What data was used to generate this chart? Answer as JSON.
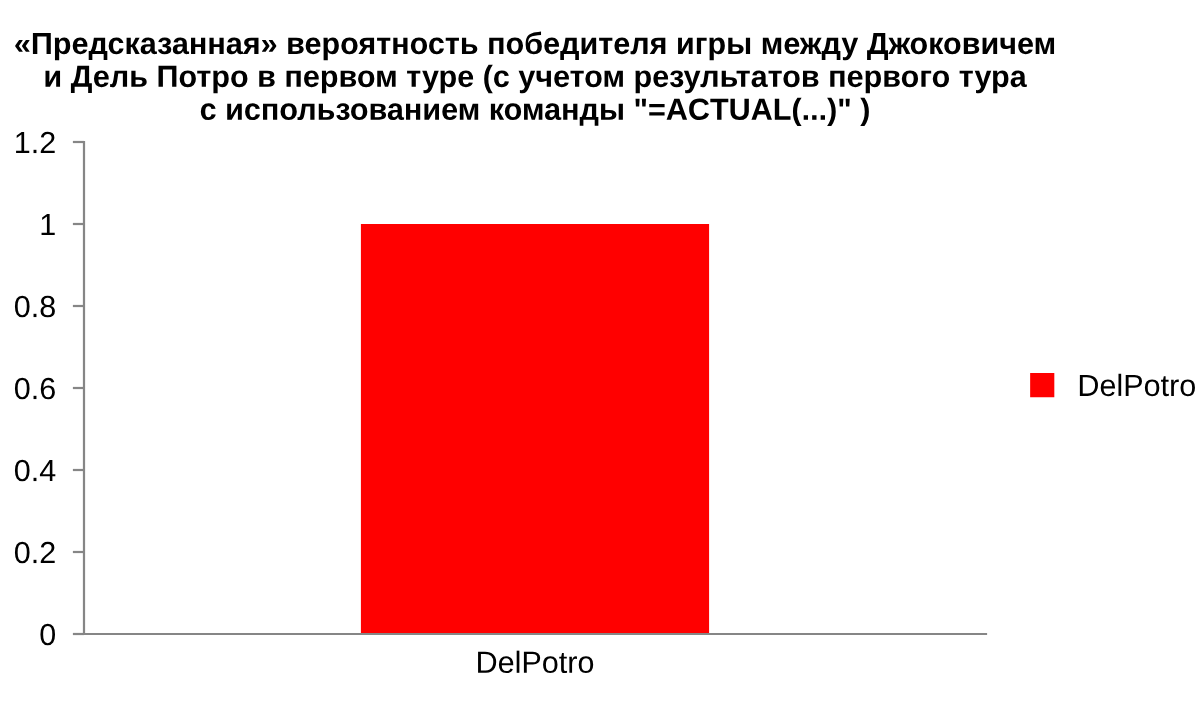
{
  "chart_data": {
    "type": "bar",
    "title": "«Предсказанная» вероятность победителя игры между Джоковичем\nи Дель Потро в первом туре (с учетом результатов первого тура\nс использованием команды \"=ACTUAL(...)\" )",
    "categories": [
      "DelPotro"
    ],
    "series": [
      {
        "name": "DelPotro",
        "color": "#ff0000",
        "values": [
          1
        ]
      }
    ],
    "ylim": [
      0,
      1.2
    ],
    "yticks": [
      0,
      0.2,
      0.4,
      0.6,
      0.8,
      1,
      1.2
    ],
    "grid": false,
    "legend": "right"
  }
}
